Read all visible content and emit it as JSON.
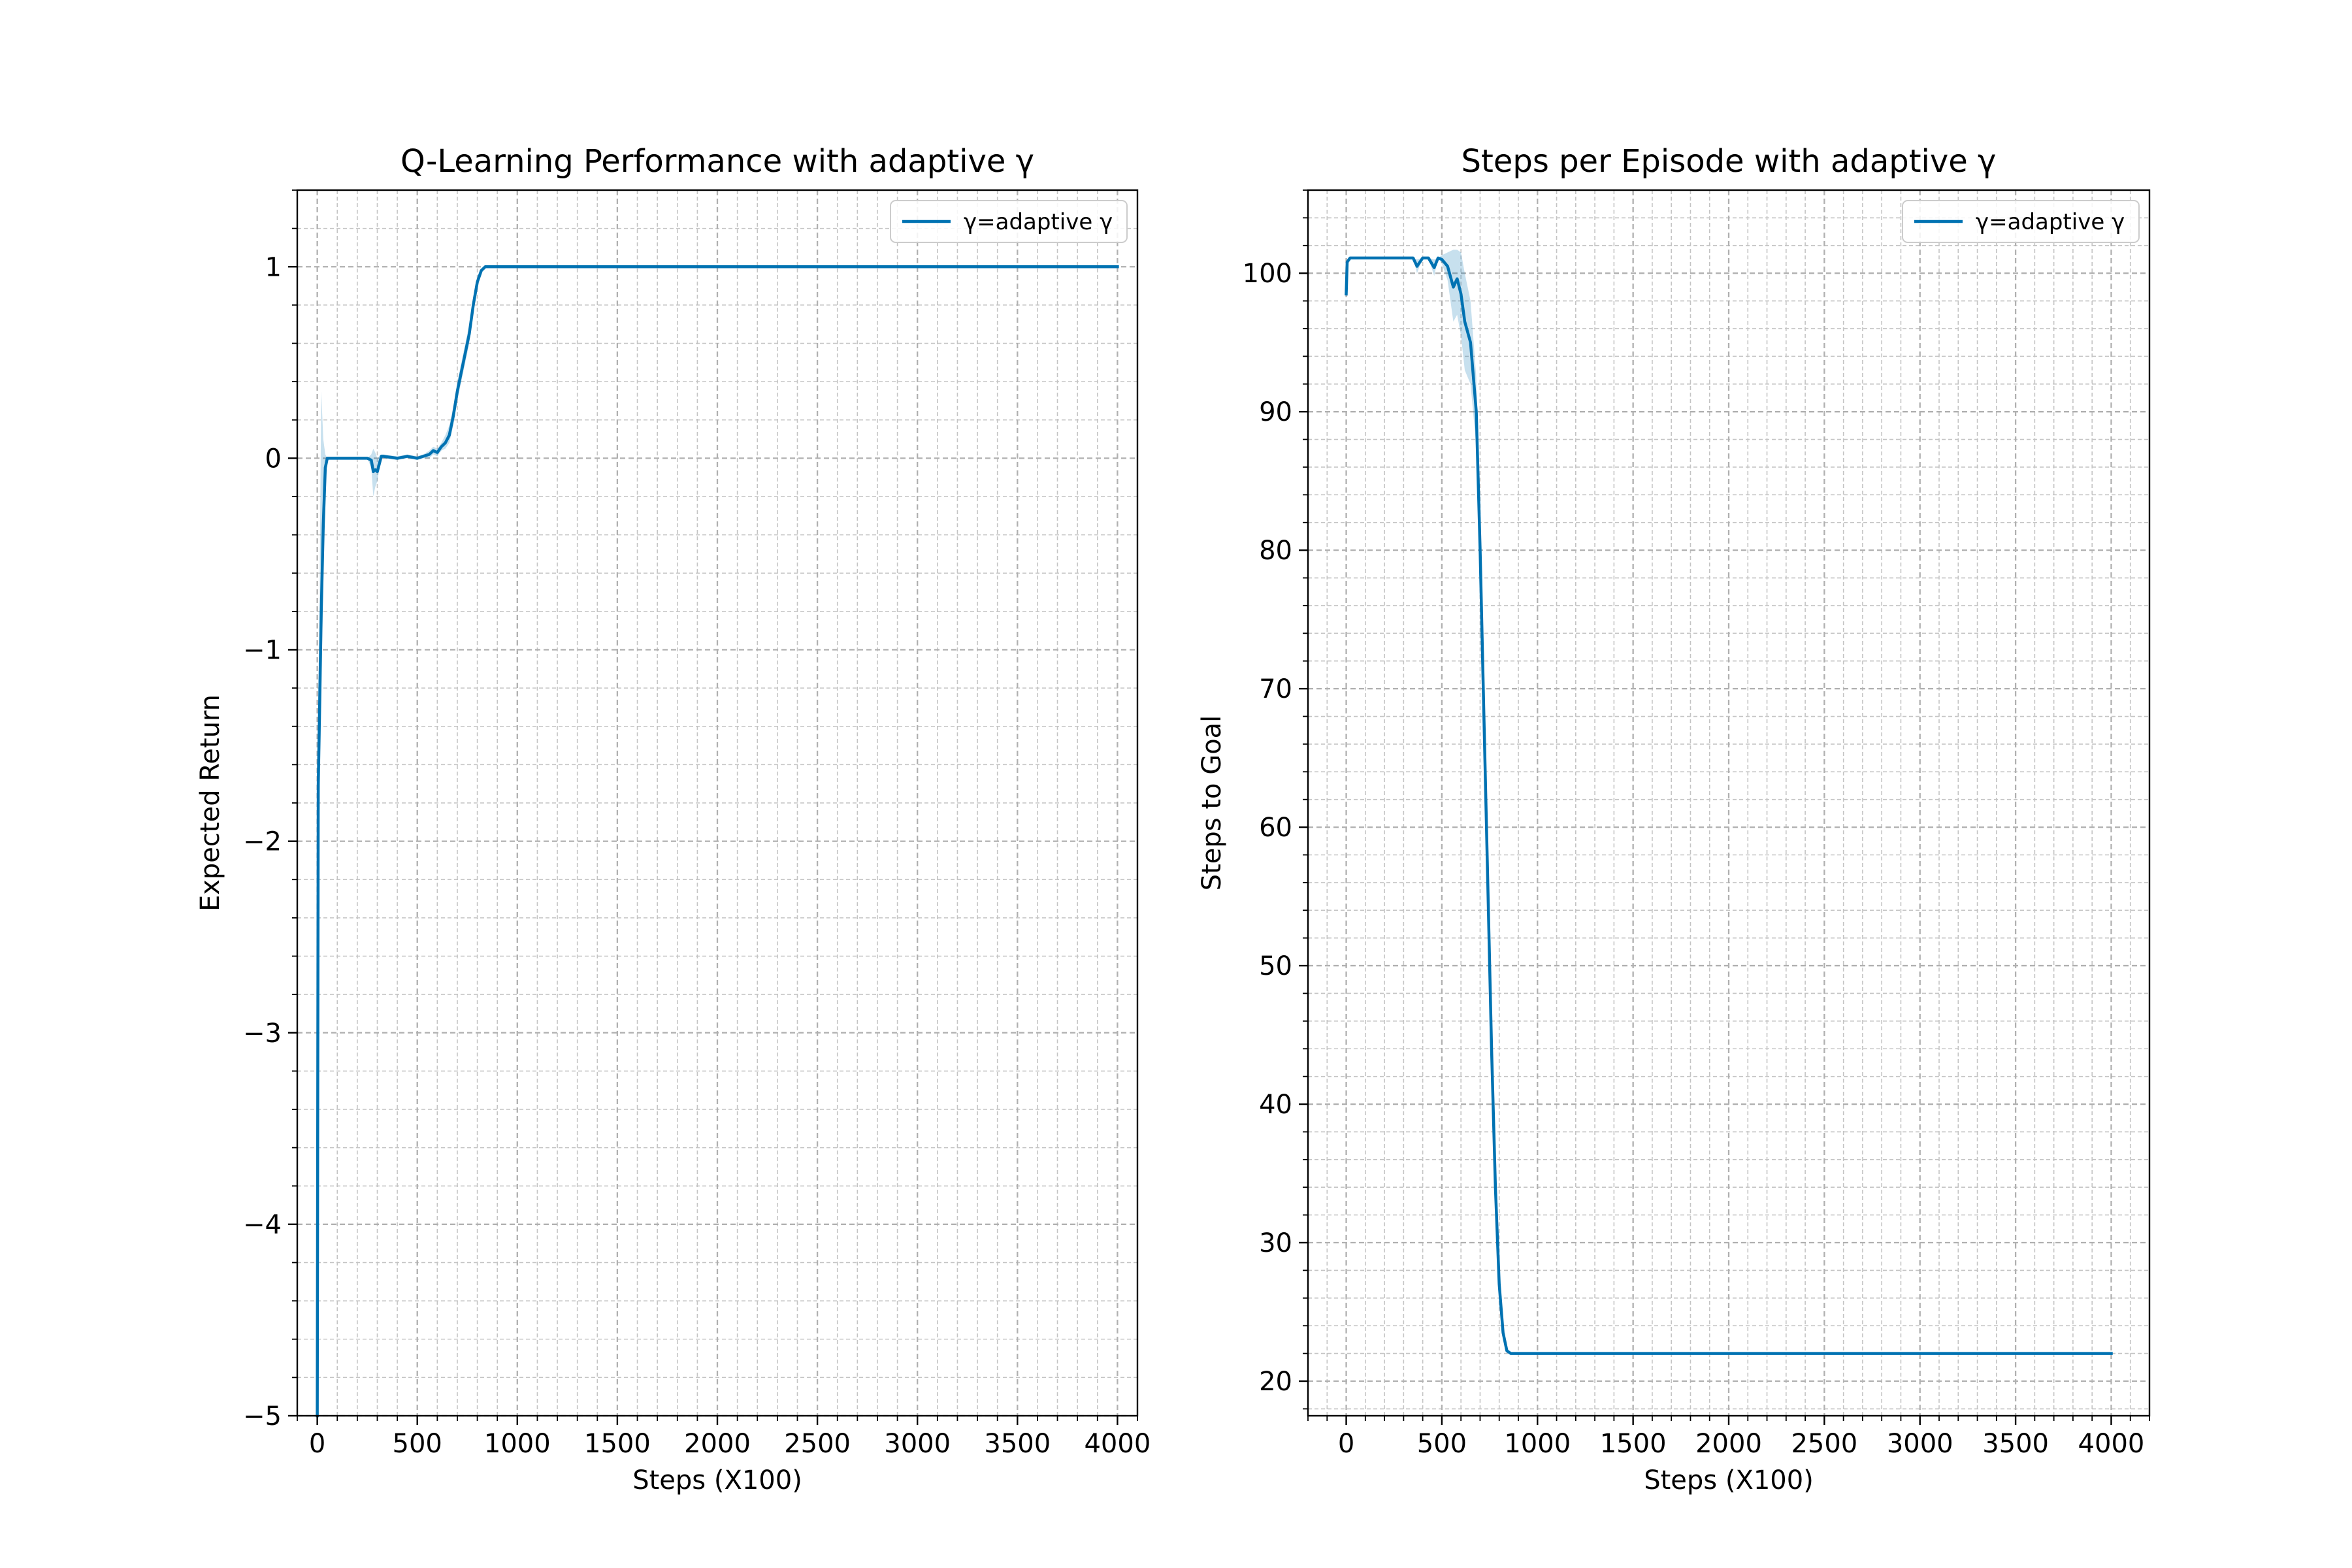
{
  "chart_data": [
    {
      "type": "line",
      "title": "Q-Learning Performance with adaptive γ",
      "xlabel": "Steps (X100)",
      "ylabel": "Expected Return",
      "xlim": [
        -100,
        4100
      ],
      "ylim": [
        -5,
        1.4
      ],
      "xticks": [
        0,
        500,
        1000,
        1500,
        2000,
        2500,
        3000,
        3500,
        4000
      ],
      "xtick_labels": [
        "0",
        "500",
        "1000",
        "1500",
        "2000",
        "2500",
        "3000",
        "3500",
        "4000"
      ],
      "yticks": [
        -5,
        -4,
        -3,
        -2,
        -1,
        0,
        1
      ],
      "ytick_labels": [
        "−5",
        "−4",
        "−3",
        "−2",
        "−1",
        "0",
        "1"
      ],
      "x_minor_step": 100,
      "y_minor_step": 0.2,
      "grid": true,
      "legend_position": "upper right",
      "series": [
        {
          "name": "γ=adaptive γ",
          "color": "#0072b2",
          "x": [
            0,
            5,
            10,
            20,
            30,
            40,
            50,
            60,
            100,
            150,
            200,
            250,
            270,
            280,
            290,
            300,
            320,
            330,
            400,
            450,
            500,
            530,
            560,
            580,
            600,
            620,
            640,
            660,
            680,
            700,
            720,
            740,
            760,
            780,
            800,
            820,
            840,
            860,
            880,
            900,
            1000,
            1500,
            2000,
            2500,
            3000,
            3500,
            4000
          ],
          "y": [
            -5,
            -1.7,
            -1.4,
            -0.8,
            -0.35,
            -0.05,
            0,
            0,
            0,
            0,
            0,
            0,
            -0.01,
            -0.07,
            -0.06,
            -0.07,
            0.01,
            0.01,
            0.0,
            0.01,
            0.0,
            0.01,
            0.02,
            0.04,
            0.03,
            0.06,
            0.08,
            0.12,
            0.22,
            0.35,
            0.45,
            0.55,
            0.65,
            0.8,
            0.92,
            0.98,
            1,
            1,
            1,
            1,
            1,
            1,
            1,
            1,
            1,
            1,
            1
          ],
          "band_upper": [
            -4.6,
            -1.2,
            -0.9,
            0.35,
            0.1,
            0.02,
            0,
            0,
            0,
            0,
            0,
            0,
            0.02,
            0.05,
            0.03,
            0.0,
            0.02,
            0.02,
            0.01,
            0.02,
            0.01,
            0.02,
            0.04,
            0.06,
            0.05,
            0.08,
            0.12,
            0.17,
            0.27,
            0.4,
            0.5,
            0.6,
            0.7,
            0.84,
            0.95,
            0.99,
            1,
            1,
            1,
            1,
            1,
            1,
            1,
            1,
            1,
            1,
            1
          ],
          "band_lower": [
            -5,
            -2.2,
            -1.9,
            -1.3,
            -0.6,
            -0.12,
            0,
            0,
            0,
            0,
            0,
            0,
            -0.05,
            -0.2,
            -0.15,
            -0.12,
            0.0,
            0.0,
            -0.01,
            0.0,
            -0.01,
            0.0,
            0.0,
            0.02,
            0.01,
            0.04,
            0.05,
            0.08,
            0.17,
            0.3,
            0.4,
            0.5,
            0.6,
            0.76,
            0.89,
            0.97,
            1,
            1,
            1,
            1,
            1,
            1,
            1,
            1,
            1,
            1,
            1
          ]
        }
      ]
    },
    {
      "type": "line",
      "title": "Steps per Episode with adaptive γ",
      "xlabel": "Steps (X100)",
      "ylabel": "Steps to Goal",
      "xlim": [
        -200,
        4200
      ],
      "ylim": [
        17.5,
        106
      ],
      "xticks": [
        0,
        500,
        1000,
        1500,
        2000,
        2500,
        3000,
        3500,
        4000
      ],
      "xtick_labels": [
        "0",
        "500",
        "1000",
        "1500",
        "2000",
        "2500",
        "3000",
        "3500",
        "4000"
      ],
      "yticks": [
        20,
        30,
        40,
        50,
        60,
        70,
        80,
        90,
        100
      ],
      "ytick_labels": [
        "20",
        "30",
        "40",
        "50",
        "60",
        "70",
        "80",
        "90",
        "100"
      ],
      "x_minor_step": 100,
      "y_minor_step": 2,
      "grid": true,
      "legend_position": "upper right",
      "series": [
        {
          "name": "γ=adaptive γ",
          "color": "#0072b2",
          "x": [
            0,
            5,
            20,
            50,
            100,
            200,
            300,
            350,
            370,
            400,
            430,
            460,
            480,
            500,
            530,
            560,
            580,
            600,
            620,
            650,
            680,
            700,
            720,
            740,
            760,
            780,
            800,
            820,
            840,
            860,
            880,
            900,
            1000,
            1500,
            2000,
            2500,
            3000,
            3500,
            4000
          ],
          "y": [
            98.5,
            100.8,
            101.1,
            101.1,
            101.1,
            101.1,
            101.1,
            101.1,
            100.5,
            101.1,
            101.1,
            100.4,
            101.1,
            101.0,
            100.5,
            99.0,
            99.6,
            98.5,
            96.5,
            95.0,
            90.0,
            80.0,
            68.0,
            56.0,
            44.0,
            34.0,
            27.0,
            23.5,
            22.2,
            22.0,
            22.0,
            22.0,
            22.0,
            22.0,
            22.0,
            22.0,
            22.0,
            22.0,
            22.0
          ],
          "band_upper": [
            98.5,
            100.8,
            101.1,
            101.1,
            101.1,
            101.1,
            101.1,
            101.1,
            101.0,
            101.1,
            101.1,
            101.0,
            101.1,
            101.3,
            101.5,
            101.7,
            101.7,
            101.5,
            100.0,
            98.0,
            92.5,
            82.5,
            70.5,
            58.0,
            46.0,
            35.5,
            28.0,
            24.0,
            22.4,
            22.0,
            22.0,
            22.0,
            22.0,
            22.0,
            22.0,
            22.0,
            22.0,
            22.0,
            22.0
          ],
          "band_lower": [
            98.5,
            100.8,
            101.1,
            101.1,
            101.1,
            101.1,
            101.1,
            101.1,
            100.0,
            101.1,
            101.1,
            99.8,
            101.1,
            100.7,
            99.5,
            96.5,
            97.0,
            95.5,
            93.0,
            92.0,
            87.5,
            77.5,
            65.5,
            54.0,
            42.0,
            32.5,
            26.0,
            23.0,
            22.0,
            22.0,
            22.0,
            22.0,
            22.0,
            22.0,
            22.0,
            22.0,
            22.0,
            22.0,
            22.0
          ]
        }
      ]
    }
  ]
}
